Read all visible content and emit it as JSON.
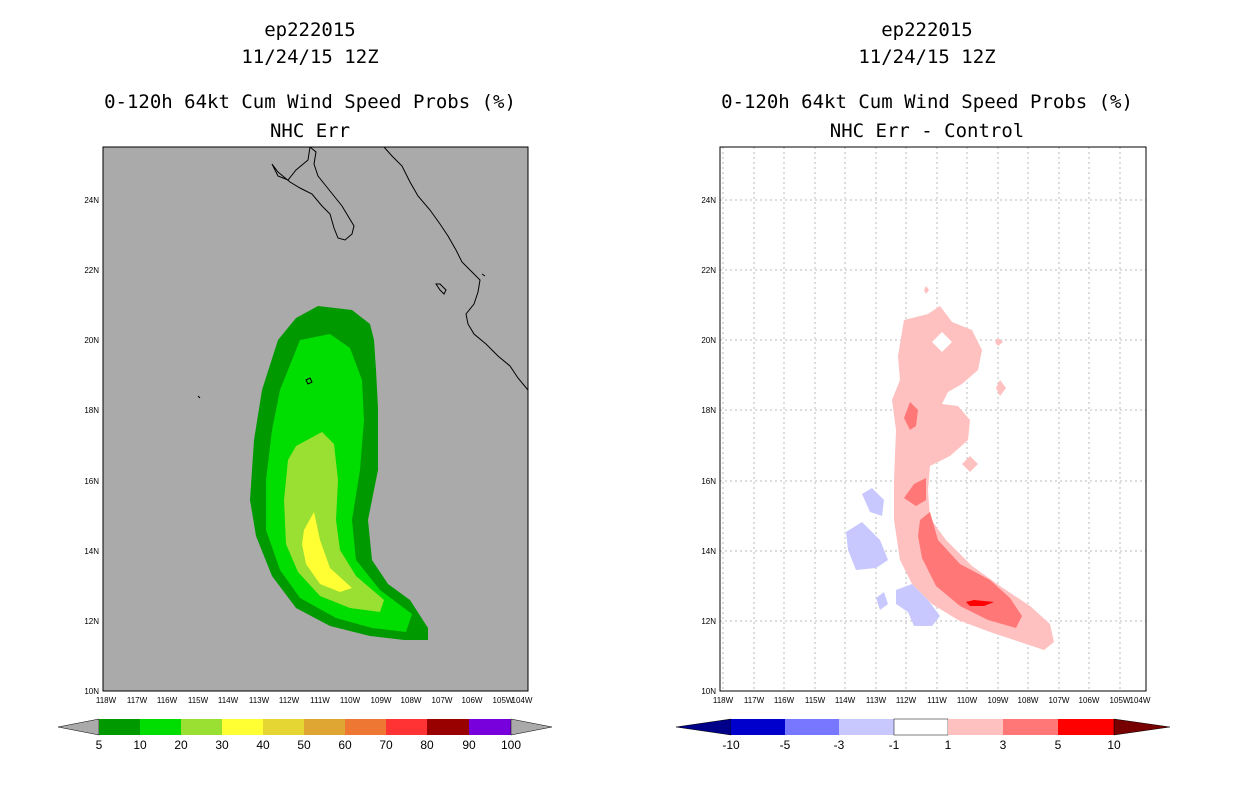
{
  "left_panel": {
    "storm_id": "ep222015",
    "datetime": "11/24/15 12Z",
    "product": "0-120h 64kt Cum Wind Speed Probs (%)",
    "subtitle": "NHC Err",
    "colorbar_labels": [
      "5",
      "10",
      "20",
      "30",
      "40",
      "50",
      "60",
      "70",
      "80",
      "90",
      "100"
    ],
    "colorbar_colors": [
      "#009900",
      "#00dd00",
      "#99e033",
      "#ffff33",
      "#e6d633",
      "#e0a633",
      "#ee7733",
      "#ff3333",
      "#990000",
      "#7700dd"
    ],
    "background_color": "#aaaaaa"
  },
  "right_panel": {
    "storm_id": "ep222015",
    "datetime": "11/24/15 12Z",
    "product": "0-120h 64kt Cum Wind Speed Probs (%)",
    "subtitle": "NHC Err - Control",
    "colorbar_labels": [
      "-10",
      "-5",
      "-3",
      "-1",
      "1",
      "3",
      "5",
      "10"
    ],
    "colorbar_colors": [
      "#0000cc",
      "#7777ff",
      "#c8c8ff",
      "#ffffff",
      "#ffc0c0",
      "#ff7777",
      "#ff0000"
    ],
    "background_color": "#ffffff"
  },
  "axes": {
    "lon_labels": [
      "118W",
      "117W",
      "116W",
      "115W",
      "114W",
      "113W",
      "112W",
      "111W",
      "110W",
      "109W",
      "108W",
      "107W",
      "106W",
      "105W",
      "104W"
    ],
    "lat_labels": [
      "10N",
      "12N",
      "14N",
      "16N",
      "18N",
      "20N",
      "22N",
      "24N"
    ]
  },
  "chart_data": [
    {
      "type": "heatmap",
      "title": "0-120h 64kt Cum Wind Speed Probs (%) - NHC Err",
      "variable": "64kt cumulative wind speed probability",
      "units": "%",
      "levels": [
        5,
        10,
        20,
        30,
        40,
        50,
        60,
        70,
        80,
        90,
        100
      ],
      "xlim": [
        -118.2,
        -104.3
      ],
      "ylim": [
        10,
        25.5
      ],
      "max_region_approx": {
        "lon": [
          -111.5,
          -110.5
        ],
        "lat": [
          13,
          15
        ],
        "value_range": "30-40"
      }
    },
    {
      "type": "heatmap",
      "title": "0-120h 64kt Cum Wind Speed Probs (%) - NHC Err - Control",
      "variable": "probability difference",
      "units": "%",
      "levels": [
        -10,
        -5,
        -3,
        -1,
        1,
        3,
        5,
        10
      ],
      "xlim": [
        -118.2,
        -104.3
      ],
      "ylim": [
        10,
        25.5
      ],
      "max_region_approx": {
        "lon": [
          -109.3,
          -108.8
        ],
        "lat": [
          12.4,
          12.6
        ],
        "value_range": "5-10"
      }
    }
  ]
}
